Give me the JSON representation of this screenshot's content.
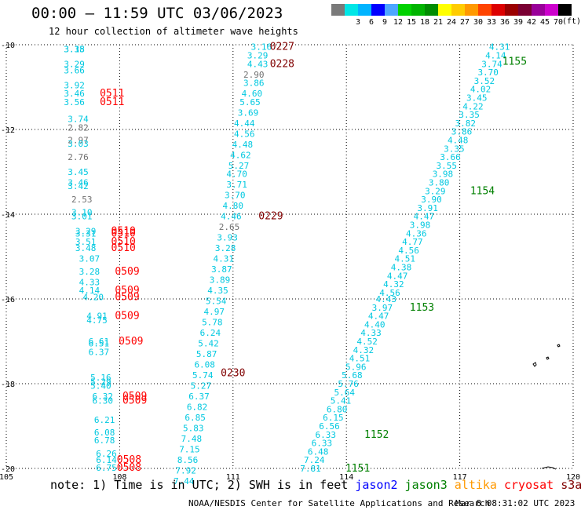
{
  "header": {
    "title": "00:00 — 11:59 UTC 03/06/2023",
    "subtitle": "12 hour collection of altimeter wave heights"
  },
  "colorbar": {
    "units": "(ft)",
    "swatches": [
      {
        "label": "",
        "color": "#7a7a7a"
      },
      {
        "label": "3",
        "color": "#00e6e6"
      },
      {
        "label": "6",
        "color": "#00b4ff"
      },
      {
        "label": "9",
        "color": "#0000ff"
      },
      {
        "label": "12",
        "color": "#4da6ff"
      },
      {
        "label": "15",
        "color": "#00d200"
      },
      {
        "label": "18",
        "color": "#00b400"
      },
      {
        "label": "21",
        "color": "#008c00"
      },
      {
        "label": "24",
        "color": "#ffff00"
      },
      {
        "label": "27",
        "color": "#ffcc00"
      },
      {
        "label": "30",
        "color": "#ff9900"
      },
      {
        "label": "33",
        "color": "#ff4400"
      },
      {
        "label": "36",
        "color": "#dd0000"
      },
      {
        "label": "39",
        "color": "#9b0000"
      },
      {
        "label": "42",
        "color": "#7a0033"
      },
      {
        "label": "45",
        "color": "#990099"
      },
      {
        "label": "70",
        "color": "#cc00cc"
      },
      {
        "label": "",
        "color": "#000000"
      }
    ]
  },
  "chart_data": {
    "type": "scatter",
    "title": "00:00 — 11:59 UTC 03/06/2023",
    "subtitle": "12 hour collection of altimeter wave heights",
    "xlim": [
      105,
      120
    ],
    "ylim": [
      -20,
      -10
    ],
    "x_ticks": [
      "105",
      "108",
      "111",
      "114",
      "117",
      "120"
    ],
    "y_ticks": [
      "-10",
      "-12",
      "-14",
      "-16",
      "-18",
      "-20"
    ],
    "grid": "dotted",
    "colors": {
      "cyan": "#00c8e0",
      "gray": "#707070",
      "red": "#ff0000",
      "darkred": "#800000",
      "green": "#008000"
    },
    "wave_heights": [
      {
        "x": 106.8,
        "y": -10.1,
        "v": "3.18",
        "c": "cyan"
      },
      {
        "x": 106.8,
        "y": -10.1,
        "v": "3.35",
        "c": "cyan"
      },
      {
        "x": 106.8,
        "y": -10.45,
        "v": "3.29",
        "c": "cyan"
      },
      {
        "x": 106.8,
        "y": -10.6,
        "v": "3.66",
        "c": "cyan"
      },
      {
        "x": 106.8,
        "y": -10.95,
        "v": "3.92",
        "c": "cyan"
      },
      {
        "x": 106.8,
        "y": -11.15,
        "v": "3.46",
        "c": "cyan"
      },
      {
        "x": 106.8,
        "y": -11.35,
        "v": "3.56",
        "c": "cyan"
      },
      {
        "x": 106.9,
        "y": -11.75,
        "v": "3.74",
        "c": "cyan"
      },
      {
        "x": 106.9,
        "y": -11.95,
        "v": "2.82",
        "c": "gray"
      },
      {
        "x": 106.9,
        "y": -12.25,
        "v": "2.97",
        "c": "gray"
      },
      {
        "x": 106.9,
        "y": -12.33,
        "v": "3.03",
        "c": "cyan"
      },
      {
        "x": 106.9,
        "y": -12.65,
        "v": "2.76",
        "c": "gray"
      },
      {
        "x": 106.9,
        "y": -13.0,
        "v": "3.45",
        "c": "cyan"
      },
      {
        "x": 106.9,
        "y": -13.25,
        "v": "3.46",
        "c": "cyan"
      },
      {
        "x": 106.9,
        "y": -13.33,
        "v": "3.42",
        "c": "cyan"
      },
      {
        "x": 107.0,
        "y": -13.65,
        "v": "2.53",
        "c": "gray"
      },
      {
        "x": 107.0,
        "y": -13.95,
        "v": "3.10",
        "c": "cyan"
      },
      {
        "x": 107.0,
        "y": -14.05,
        "v": "3.01",
        "c": "cyan"
      },
      {
        "x": 107.1,
        "y": -14.4,
        "v": "3.29",
        "c": "cyan"
      },
      {
        "x": 107.1,
        "y": -14.45,
        "v": "3.31",
        "c": "cyan"
      },
      {
        "x": 107.1,
        "y": -14.65,
        "v": "3.51",
        "c": "cyan"
      },
      {
        "x": 107.1,
        "y": -14.8,
        "v": "3.48",
        "c": "cyan"
      },
      {
        "x": 107.2,
        "y": -15.05,
        "v": "3.07",
        "c": "cyan"
      },
      {
        "x": 107.2,
        "y": -15.35,
        "v": "3.28",
        "c": "cyan"
      },
      {
        "x": 107.2,
        "y": -15.6,
        "v": "4.33",
        "c": "cyan"
      },
      {
        "x": 107.2,
        "y": -15.8,
        "v": "4.14",
        "c": "cyan"
      },
      {
        "x": 107.3,
        "y": -15.95,
        "v": "4.20",
        "c": "cyan"
      },
      {
        "x": 107.4,
        "y": -16.4,
        "v": "4.91",
        "c": "cyan"
      },
      {
        "x": 107.4,
        "y": -16.5,
        "v": "4.75",
        "c": "cyan"
      },
      {
        "x": 107.45,
        "y": -17.0,
        "v": "6.61",
        "c": "cyan"
      },
      {
        "x": 107.45,
        "y": -17.05,
        "v": "6.51",
        "c": "cyan"
      },
      {
        "x": 107.45,
        "y": -17.25,
        "v": "6.37",
        "c": "cyan"
      },
      {
        "x": 107.5,
        "y": -17.85,
        "v": "5.16",
        "c": "cyan"
      },
      {
        "x": 107.5,
        "y": -17.95,
        "v": "5.29",
        "c": "cyan"
      },
      {
        "x": 107.5,
        "y": -18.05,
        "v": "5.40",
        "c": "cyan"
      },
      {
        "x": 107.55,
        "y": -18.3,
        "v": "6.32",
        "c": "cyan"
      },
      {
        "x": 107.55,
        "y": -18.4,
        "v": "6.30",
        "c": "cyan"
      },
      {
        "x": 107.6,
        "y": -18.85,
        "v": "6.21",
        "c": "cyan"
      },
      {
        "x": 107.6,
        "y": -19.15,
        "v": "6.08",
        "c": "cyan"
      },
      {
        "x": 107.6,
        "y": -19.33,
        "v": "6.78",
        "c": "cyan"
      },
      {
        "x": 107.65,
        "y": -19.65,
        "v": "6.26",
        "c": "cyan"
      },
      {
        "x": 107.65,
        "y": -19.8,
        "v": "6.14",
        "c": "cyan"
      },
      {
        "x": 107.65,
        "y": -19.98,
        "v": "6.75",
        "c": "cyan"
      },
      {
        "x": 111.75,
        "y": -10.05,
        "v": "3.16",
        "c": "cyan"
      },
      {
        "x": 111.65,
        "y": -10.25,
        "v": "3.29",
        "c": "cyan"
      },
      {
        "x": 111.65,
        "y": -10.45,
        "v": "4.43",
        "c": "cyan"
      },
      {
        "x": 111.55,
        "y": -10.7,
        "v": "2.90",
        "c": "gray"
      },
      {
        "x": 111.55,
        "y": -10.9,
        "v": "3.86",
        "c": "cyan"
      },
      {
        "x": 111.5,
        "y": -11.15,
        "v": "4.60",
        "c": "cyan"
      },
      {
        "x": 111.45,
        "y": -11.35,
        "v": "5.65",
        "c": "cyan"
      },
      {
        "x": 111.4,
        "y": -11.6,
        "v": "3.69",
        "c": "cyan"
      },
      {
        "x": 111.3,
        "y": -11.85,
        "v": "4.44",
        "c": "cyan"
      },
      {
        "x": 111.3,
        "y": -12.1,
        "v": "4.56",
        "c": "cyan"
      },
      {
        "x": 111.25,
        "y": -12.35,
        "v": "4.48",
        "c": "cyan"
      },
      {
        "x": 111.2,
        "y": -12.6,
        "v": "4.62",
        "c": "cyan"
      },
      {
        "x": 111.15,
        "y": -12.85,
        "v": "5.27",
        "c": "cyan"
      },
      {
        "x": 111.1,
        "y": -13.05,
        "v": "4.70",
        "c": "cyan"
      },
      {
        "x": 111.1,
        "y": -13.3,
        "v": "3.71",
        "c": "cyan"
      },
      {
        "x": 111.05,
        "y": -13.55,
        "v": "3.70",
        "c": "cyan"
      },
      {
        "x": 111.0,
        "y": -13.8,
        "v": "4.80",
        "c": "cyan"
      },
      {
        "x": 110.95,
        "y": -14.05,
        "v": "4.46",
        "c": "cyan"
      },
      {
        "x": 110.9,
        "y": -14.3,
        "v": "2.65",
        "c": "gray"
      },
      {
        "x": 110.85,
        "y": -14.55,
        "v": "3.93",
        "c": "cyan"
      },
      {
        "x": 110.8,
        "y": -14.8,
        "v": "3.28",
        "c": "cyan"
      },
      {
        "x": 110.75,
        "y": -15.05,
        "v": "4.31",
        "c": "cyan"
      },
      {
        "x": 110.7,
        "y": -15.3,
        "v": "3.87",
        "c": "cyan"
      },
      {
        "x": 110.65,
        "y": -15.55,
        "v": "3.89",
        "c": "cyan"
      },
      {
        "x": 110.6,
        "y": -15.8,
        "v": "4.35",
        "c": "cyan"
      },
      {
        "x": 110.55,
        "y": -16.05,
        "v": "5.54",
        "c": "cyan"
      },
      {
        "x": 110.5,
        "y": -16.3,
        "v": "4.97",
        "c": "cyan"
      },
      {
        "x": 110.45,
        "y": -16.55,
        "v": "5.78",
        "c": "cyan"
      },
      {
        "x": 110.4,
        "y": -16.8,
        "v": "6.24",
        "c": "cyan"
      },
      {
        "x": 110.35,
        "y": -17.05,
        "v": "5.42",
        "c": "cyan"
      },
      {
        "x": 110.3,
        "y": -17.3,
        "v": "5.87",
        "c": "cyan"
      },
      {
        "x": 110.25,
        "y": -17.55,
        "v": "6.08",
        "c": "cyan"
      },
      {
        "x": 110.2,
        "y": -17.8,
        "v": "5.74",
        "c": "cyan"
      },
      {
        "x": 110.15,
        "y": -18.05,
        "v": "5.27",
        "c": "cyan"
      },
      {
        "x": 110.1,
        "y": -18.3,
        "v": "6.37",
        "c": "cyan"
      },
      {
        "x": 110.05,
        "y": -18.55,
        "v": "6.82",
        "c": "cyan"
      },
      {
        "x": 110.0,
        "y": -18.8,
        "v": "6.85",
        "c": "cyan"
      },
      {
        "x": 109.95,
        "y": -19.05,
        "v": "5.83",
        "c": "cyan"
      },
      {
        "x": 109.9,
        "y": -19.3,
        "v": "7.48",
        "c": "cyan"
      },
      {
        "x": 109.85,
        "y": -19.55,
        "v": "7.15",
        "c": "cyan"
      },
      {
        "x": 109.8,
        "y": -19.8,
        "v": "8.56",
        "c": "cyan"
      },
      {
        "x": 109.75,
        "y": -20.05,
        "v": "7.92",
        "c": "cyan"
      },
      {
        "x": 109.7,
        "y": -20.3,
        "v": "7.44",
        "c": "cyan"
      },
      {
        "x": 118.05,
        "y": -10.05,
        "v": "4.31",
        "c": "cyan"
      },
      {
        "x": 117.95,
        "y": -10.25,
        "v": "4.14",
        "c": "cyan"
      },
      {
        "x": 117.85,
        "y": -10.45,
        "v": "3.74",
        "c": "cyan"
      },
      {
        "x": 117.75,
        "y": -10.65,
        "v": "3.70",
        "c": "cyan"
      },
      {
        "x": 117.65,
        "y": -10.85,
        "v": "3.52",
        "c": "cyan"
      },
      {
        "x": 117.55,
        "y": -11.05,
        "v": "4.02",
        "c": "cyan"
      },
      {
        "x": 117.45,
        "y": -11.25,
        "v": "3.45",
        "c": "cyan"
      },
      {
        "x": 117.35,
        "y": -11.45,
        "v": "4.22",
        "c": "cyan"
      },
      {
        "x": 117.25,
        "y": -11.65,
        "v": "3.35",
        "c": "cyan"
      },
      {
        "x": 117.15,
        "y": -11.85,
        "v": "3.82",
        "c": "cyan"
      },
      {
        "x": 117.05,
        "y": -12.05,
        "v": "3.86",
        "c": "cyan"
      },
      {
        "x": 116.95,
        "y": -12.25,
        "v": "4.48",
        "c": "cyan"
      },
      {
        "x": 116.85,
        "y": -12.45,
        "v": "3.35",
        "c": "cyan"
      },
      {
        "x": 116.75,
        "y": -12.65,
        "v": "3.66",
        "c": "cyan"
      },
      {
        "x": 116.65,
        "y": -12.85,
        "v": "3.55",
        "c": "cyan"
      },
      {
        "x": 116.55,
        "y": -13.05,
        "v": "3.98",
        "c": "cyan"
      },
      {
        "x": 116.45,
        "y": -13.25,
        "v": "3.80",
        "c": "cyan"
      },
      {
        "x": 116.35,
        "y": -13.45,
        "v": "3.29",
        "c": "cyan"
      },
      {
        "x": 116.25,
        "y": -13.65,
        "v": "3.90",
        "c": "cyan"
      },
      {
        "x": 116.15,
        "y": -13.85,
        "v": "3.91",
        "c": "cyan"
      },
      {
        "x": 116.05,
        "y": -14.05,
        "v": "4.47",
        "c": "cyan"
      },
      {
        "x": 115.95,
        "y": -14.25,
        "v": "3.98",
        "c": "cyan"
      },
      {
        "x": 115.85,
        "y": -14.45,
        "v": "4.36",
        "c": "cyan"
      },
      {
        "x": 115.75,
        "y": -14.65,
        "v": "4.77",
        "c": "cyan"
      },
      {
        "x": 115.65,
        "y": -14.85,
        "v": "4.56",
        "c": "cyan"
      },
      {
        "x": 115.55,
        "y": -15.05,
        "v": "4.51",
        "c": "cyan"
      },
      {
        "x": 115.45,
        "y": -15.25,
        "v": "4.38",
        "c": "cyan"
      },
      {
        "x": 115.35,
        "y": -15.45,
        "v": "4.47",
        "c": "cyan"
      },
      {
        "x": 115.25,
        "y": -15.65,
        "v": "4.32",
        "c": "cyan"
      },
      {
        "x": 115.15,
        "y": -15.85,
        "v": "4.56",
        "c": "cyan"
      },
      {
        "x": 115.05,
        "y": -16.0,
        "v": "4.43",
        "c": "cyan"
      },
      {
        "x": 114.95,
        "y": -16.2,
        "v": "3.97",
        "c": "cyan"
      },
      {
        "x": 114.85,
        "y": -16.4,
        "v": "4.47",
        "c": "cyan"
      },
      {
        "x": 114.75,
        "y": -16.6,
        "v": "4.40",
        "c": "cyan"
      },
      {
        "x": 114.65,
        "y": -16.8,
        "v": "4.33",
        "c": "cyan"
      },
      {
        "x": 114.55,
        "y": -17.0,
        "v": "4.52",
        "c": "cyan"
      },
      {
        "x": 114.45,
        "y": -17.2,
        "v": "4.32",
        "c": "cyan"
      },
      {
        "x": 114.35,
        "y": -17.4,
        "v": "4.51",
        "c": "cyan"
      },
      {
        "x": 114.25,
        "y": -17.6,
        "v": "5.96",
        "c": "cyan"
      },
      {
        "x": 114.15,
        "y": -17.8,
        "v": "5.68",
        "c": "cyan"
      },
      {
        "x": 114.05,
        "y": -18.0,
        "v": "5.76",
        "c": "cyan"
      },
      {
        "x": 113.95,
        "y": -18.2,
        "v": "5.64",
        "c": "cyan"
      },
      {
        "x": 113.85,
        "y": -18.4,
        "v": "5.41",
        "c": "cyan"
      },
      {
        "x": 113.75,
        "y": -18.6,
        "v": "6.80",
        "c": "cyan"
      },
      {
        "x": 113.65,
        "y": -18.8,
        "v": "6.15",
        "c": "cyan"
      },
      {
        "x": 113.55,
        "y": -19.0,
        "v": "6.56",
        "c": "cyan"
      },
      {
        "x": 113.45,
        "y": -19.2,
        "v": "6.33",
        "c": "cyan"
      },
      {
        "x": 113.35,
        "y": -19.4,
        "v": "6.33",
        "c": "cyan"
      },
      {
        "x": 113.25,
        "y": -19.6,
        "v": "6.48",
        "c": "cyan"
      },
      {
        "x": 113.15,
        "y": -19.8,
        "v": "7.24",
        "c": "cyan"
      },
      {
        "x": 113.05,
        "y": -20.0,
        "v": "7.81",
        "c": "cyan"
      }
    ],
    "pass_times": [
      {
        "x": 112.3,
        "y": -10.05,
        "v": "0227",
        "c": "darkred"
      },
      {
        "x": 112.3,
        "y": -10.45,
        "v": "0228",
        "c": "darkred"
      },
      {
        "x": 112.0,
        "y": -14.05,
        "v": "0229",
        "c": "darkred"
      },
      {
        "x": 111.0,
        "y": -17.75,
        "v": "0230",
        "c": "darkred"
      },
      {
        "x": 107.8,
        "y": -11.15,
        "v": "0511",
        "c": "red"
      },
      {
        "x": 107.8,
        "y": -11.35,
        "v": "0511",
        "c": "red"
      },
      {
        "x": 108.1,
        "y": -14.4,
        "v": "0510",
        "c": "red"
      },
      {
        "x": 108.1,
        "y": -14.45,
        "v": "0510",
        "c": "red"
      },
      {
        "x": 108.1,
        "y": -14.65,
        "v": "0510",
        "c": "red"
      },
      {
        "x": 108.1,
        "y": -14.8,
        "v": "0510",
        "c": "red"
      },
      {
        "x": 108.2,
        "y": -15.35,
        "v": "0509",
        "c": "red"
      },
      {
        "x": 108.2,
        "y": -15.8,
        "v": "0509",
        "c": "red"
      },
      {
        "x": 108.2,
        "y": -15.95,
        "v": "0509",
        "c": "red"
      },
      {
        "x": 108.2,
        "y": -16.4,
        "v": "0509",
        "c": "red"
      },
      {
        "x": 108.3,
        "y": -17.0,
        "v": "0509",
        "c": "red"
      },
      {
        "x": 108.4,
        "y": -18.3,
        "v": "0509",
        "c": "red"
      },
      {
        "x": 108.4,
        "y": -18.4,
        "v": "0509",
        "c": "red"
      },
      {
        "x": 108.25,
        "y": -19.8,
        "v": "0508",
        "c": "red"
      },
      {
        "x": 108.25,
        "y": -19.98,
        "v": "0508",
        "c": "red"
      },
      {
        "x": 118.45,
        "y": -10.4,
        "v": "1155",
        "c": "green"
      },
      {
        "x": 117.6,
        "y": -13.45,
        "v": "1154",
        "c": "green"
      },
      {
        "x": 116.0,
        "y": -16.2,
        "v": "1153",
        "c": "green"
      },
      {
        "x": 114.8,
        "y": -19.2,
        "v": "1152",
        "c": "green"
      },
      {
        "x": 114.3,
        "y": -20.0,
        "v": "1151",
        "c": "green"
      }
    ]
  },
  "footer": {
    "note": "note: 1) Time is in UTC; 2) SWH is in feet",
    "legend": [
      {
        "label": "jason2",
        "color": "#0000ff"
      },
      {
        "label": "jason3",
        "color": "#008000"
      },
      {
        "label": "altika",
        "color": "#ff9900"
      },
      {
        "label": "cryosat",
        "color": "#ff0000"
      },
      {
        "label": "s3a",
        "color": "#800000"
      }
    ],
    "credit": "NOAA/NESDIS Center for Satellite Applications and Research",
    "timestamp": "Mar  8 08:31:02 UTC 2023"
  }
}
